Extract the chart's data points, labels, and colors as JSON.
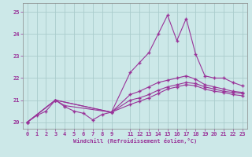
{
  "background_color": "#cce8e8",
  "grid_color": "#aacccc",
  "line_color": "#993399",
  "marker": "+",
  "xlabel": "Windchill (Refroidissement éolien,°C)",
  "xlim": [
    -0.5,
    23.5
  ],
  "ylim": [
    19.7,
    25.4
  ],
  "yticks": [
    20,
    21,
    22,
    23,
    24,
    25
  ],
  "xticks": [
    0,
    1,
    2,
    3,
    4,
    5,
    6,
    7,
    8,
    9,
    11,
    12,
    13,
    14,
    15,
    16,
    17,
    18,
    19,
    20,
    21,
    22,
    23
  ],
  "series1_x": [
    0,
    1,
    2,
    3,
    4,
    5,
    6,
    7,
    8,
    9,
    11,
    12,
    13,
    14,
    15,
    16,
    17,
    18,
    19,
    20,
    21,
    22,
    23
  ],
  "series1_y": [
    20.0,
    20.3,
    20.5,
    21.0,
    20.7,
    20.5,
    20.4,
    20.1,
    20.35,
    20.45,
    22.25,
    22.7,
    23.15,
    24.0,
    24.85,
    23.7,
    24.7,
    23.1,
    22.1,
    22.0,
    22.0,
    21.8,
    21.65
  ],
  "series2_x": [
    0,
    3,
    4,
    9,
    11,
    12,
    13,
    14,
    15,
    16,
    17,
    18,
    19,
    20,
    21,
    22,
    23
  ],
  "series2_y": [
    20.0,
    21.0,
    20.75,
    20.45,
    21.25,
    21.4,
    21.6,
    21.8,
    21.9,
    22.0,
    22.1,
    21.95,
    21.7,
    21.6,
    21.5,
    21.4,
    21.35
  ],
  "series3_x": [
    0,
    3,
    9,
    11,
    12,
    13,
    14,
    15,
    16,
    17,
    18,
    19,
    20,
    21,
    22,
    23
  ],
  "series3_y": [
    20.0,
    21.0,
    20.45,
    21.0,
    21.1,
    21.25,
    21.45,
    21.6,
    21.7,
    21.8,
    21.75,
    21.6,
    21.5,
    21.4,
    21.35,
    21.3
  ],
  "series4_x": [
    0,
    3,
    9,
    11,
    12,
    13,
    14,
    15,
    16,
    17,
    18,
    19,
    20,
    21,
    22,
    23
  ],
  "series4_y": [
    20.0,
    21.0,
    20.45,
    20.8,
    20.95,
    21.1,
    21.3,
    21.5,
    21.6,
    21.7,
    21.65,
    21.5,
    21.4,
    21.35,
    21.25,
    21.2
  ]
}
